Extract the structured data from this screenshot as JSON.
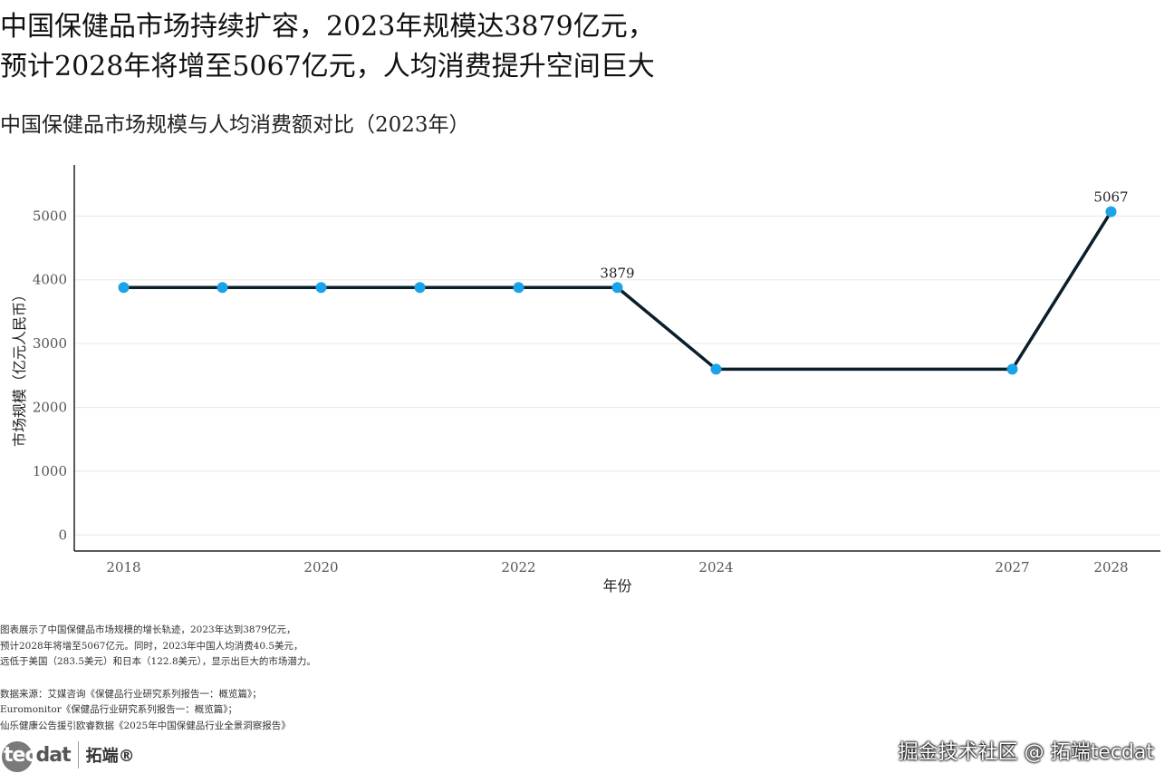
{
  "headline": {
    "line1": "中国保健品市场持续扩容，2023年规模达3879亿元，",
    "line2": "预计2028年将增至5067亿元，人均消费提升空间巨大"
  },
  "subtitle": "中国保健品市场规模与人均消费额对比（2023年）",
  "notes": {
    "desc": [
      "图表展示了中国保健品市场规模的增长轨迹，2023年达到3879亿元，",
      "预计2028年将增至5067亿元。同时，2023年中国人均消费40.5美元，",
      "远低于美国（283.5美元）和日本（122.8美元），显示出巨大的市场潜力。"
    ],
    "sources": [
      "数据来源：艾媒咨询《保健品行业研究系列报告一：概览篇》；",
      "Euromonitor《保健品行业研究系列报告一：概览篇》；",
      "仙乐健康公告援引欧睿数据《2025年中国保健品行业全景洞察报告》"
    ]
  },
  "logo": {
    "mark_a": "tec",
    "mark_b": "dat",
    "cn": "拓端®"
  },
  "watermark": "掘金技术社区 @ 拓端tecdat",
  "chart_data": {
    "type": "line",
    "x": [
      2018,
      2019,
      2020,
      2021,
      2022,
      2023,
      2024,
      2027,
      2028
    ],
    "values": [
      3879,
      3879,
      3879,
      3879,
      3879,
      3879,
      2600,
      2600,
      5067
    ],
    "xticks": [
      2018,
      2020,
      2022,
      2024,
      2027,
      2028
    ],
    "yticks": [
      0,
      1000,
      2000,
      3000,
      4000,
      5000
    ],
    "xlim": [
      2017.5,
      2028.5
    ],
    "ylim": [
      -250,
      5800
    ],
    "xlabel": "年份",
    "ylabel": "市场规模（亿元人民币）",
    "labeled_points": [
      2023,
      2028
    ],
    "grid": "horizontal",
    "colors": {
      "line": "#0b1f2a",
      "marker": "#1aa3e8",
      "grid": "#e6e6e6",
      "axis": "#222222"
    }
  }
}
